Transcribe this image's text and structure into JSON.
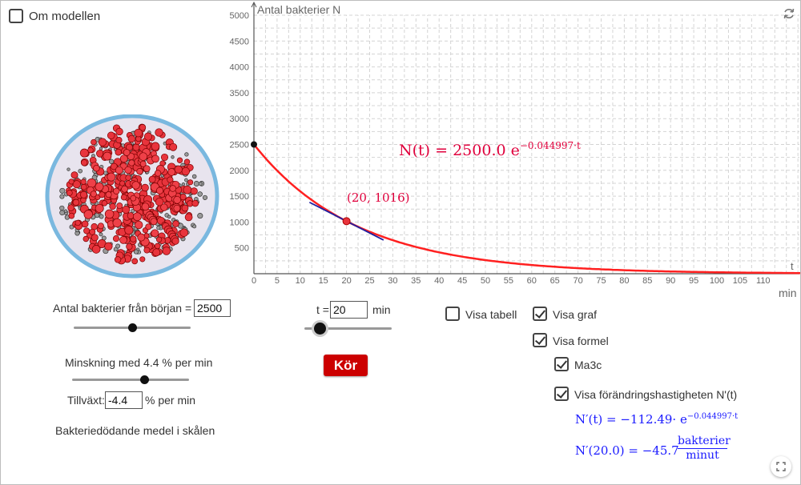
{
  "about": {
    "label": "Om modellen",
    "checked": false
  },
  "graph": {
    "y_axis_label": "Antal bakterier N",
    "x_axis_label": "t",
    "x_unit": "min",
    "x_ticks": [
      "0",
      "5",
      "10",
      "15",
      "20",
      "25",
      "30",
      "35",
      "40",
      "45",
      "50",
      "55",
      "60",
      "65",
      "70",
      "75",
      "80",
      "85",
      "90",
      "95",
      "100",
      "105",
      "110"
    ],
    "y_ticks": [
      "500",
      "1000",
      "1500",
      "2000",
      "2500",
      "3000",
      "3500",
      "4000",
      "4500",
      "5000"
    ],
    "formula": "N(t) = 2500.0 e",
    "formula_exp": "−0.044997·t",
    "point_label": "(20, 1016)",
    "curve_color": "#ff2020",
    "tangent_color": "#2020a0"
  },
  "chart_data": {
    "type": "line",
    "title": "",
    "xlabel": "t",
    "ylabel": "Antal bakterier N",
    "xlim": [
      0,
      118
    ],
    "ylim": [
      0,
      5000
    ],
    "grid": true,
    "series": [
      {
        "name": "N(t) = 2500.0 e^(−0.044997·t)",
        "N0": 2500.0,
        "k": -0.044997,
        "x": [
          0,
          10,
          20,
          30,
          40,
          50,
          60,
          70,
          80,
          90,
          100,
          110,
          118
        ],
        "y": [
          2500,
          1594,
          1016,
          648,
          413,
          263,
          168,
          107,
          68,
          44,
          28,
          18,
          12
        ]
      }
    ],
    "points": [
      {
        "x": 0,
        "y": 2500
      },
      {
        "x": 20,
        "y": 1016
      }
    ],
    "tangent": {
      "x": 20,
      "y": 1016,
      "slope": -45.7,
      "x_from": 12,
      "x_to": 28
    }
  },
  "controls": {
    "start_label": "Antal bakterier från början =",
    "start_value": "2500",
    "start_slider_fraction": 0.5,
    "decrease_label": "Minskning med 4.4 % per min",
    "decrease_slider_fraction": 0.62,
    "growth_label": "Tillväxt:",
    "growth_value": "-4.4",
    "growth_unit": "% per min",
    "agent_label": "Bakteriedödande medel i skålen",
    "t_label": "t =",
    "t_value": "20",
    "t_unit": "min",
    "t_slider_fraction": 0.18,
    "run_label": "Kör"
  },
  "options": {
    "show_table": {
      "label": "Visa tabell",
      "checked": false
    },
    "show_graph": {
      "label": "Visa graf",
      "checked": true
    },
    "show_formula": {
      "label": "Visa formel",
      "checked": true
    },
    "ma3c": {
      "label": "Ma3c",
      "checked": true
    },
    "show_rate": {
      "label": "Visa förändringshastigheten N'(t)",
      "checked": true
    }
  },
  "derivative": {
    "formula": "N′(t) = −112.49· e",
    "formula_exp": "−0.044997·t",
    "value_prefix": "N′(20.0) = −45.7",
    "unit_num": "bakterier",
    "unit_den": "minut"
  },
  "colors": {
    "accent": "#cc0000",
    "formula_red": "#e0003c",
    "formula_blue": "#1a1aff",
    "dish_rim": "#7ab8df",
    "dish_fill": "#e8e4ee",
    "bacteria_red": "#e8343c"
  }
}
